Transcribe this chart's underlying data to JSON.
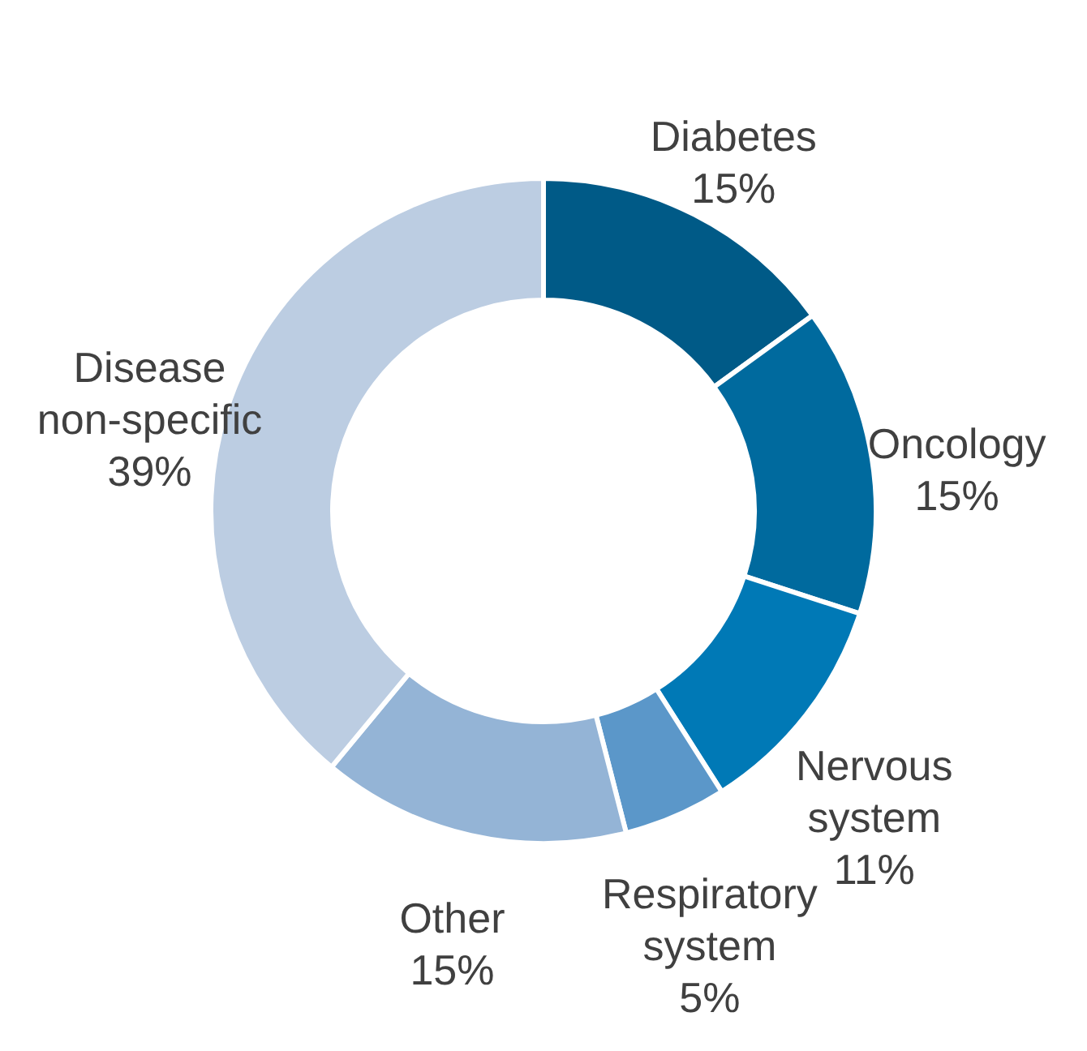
{
  "chart_data": {
    "type": "donut",
    "categories": [
      "Diabetes",
      "Oncology",
      "Nervous system",
      "Respiratory system",
      "Other",
      "Disease non-specific"
    ],
    "values": [
      15,
      15,
      11,
      5,
      15,
      39
    ],
    "value_labels": [
      "15%",
      "15%",
      "11%",
      "5%",
      "15%",
      "39%"
    ],
    "colors": [
      "#005a87",
      "#006a9e",
      "#0079b6",
      "#5b97c9",
      "#94b4d6",
      "#bccde2"
    ]
  }
}
